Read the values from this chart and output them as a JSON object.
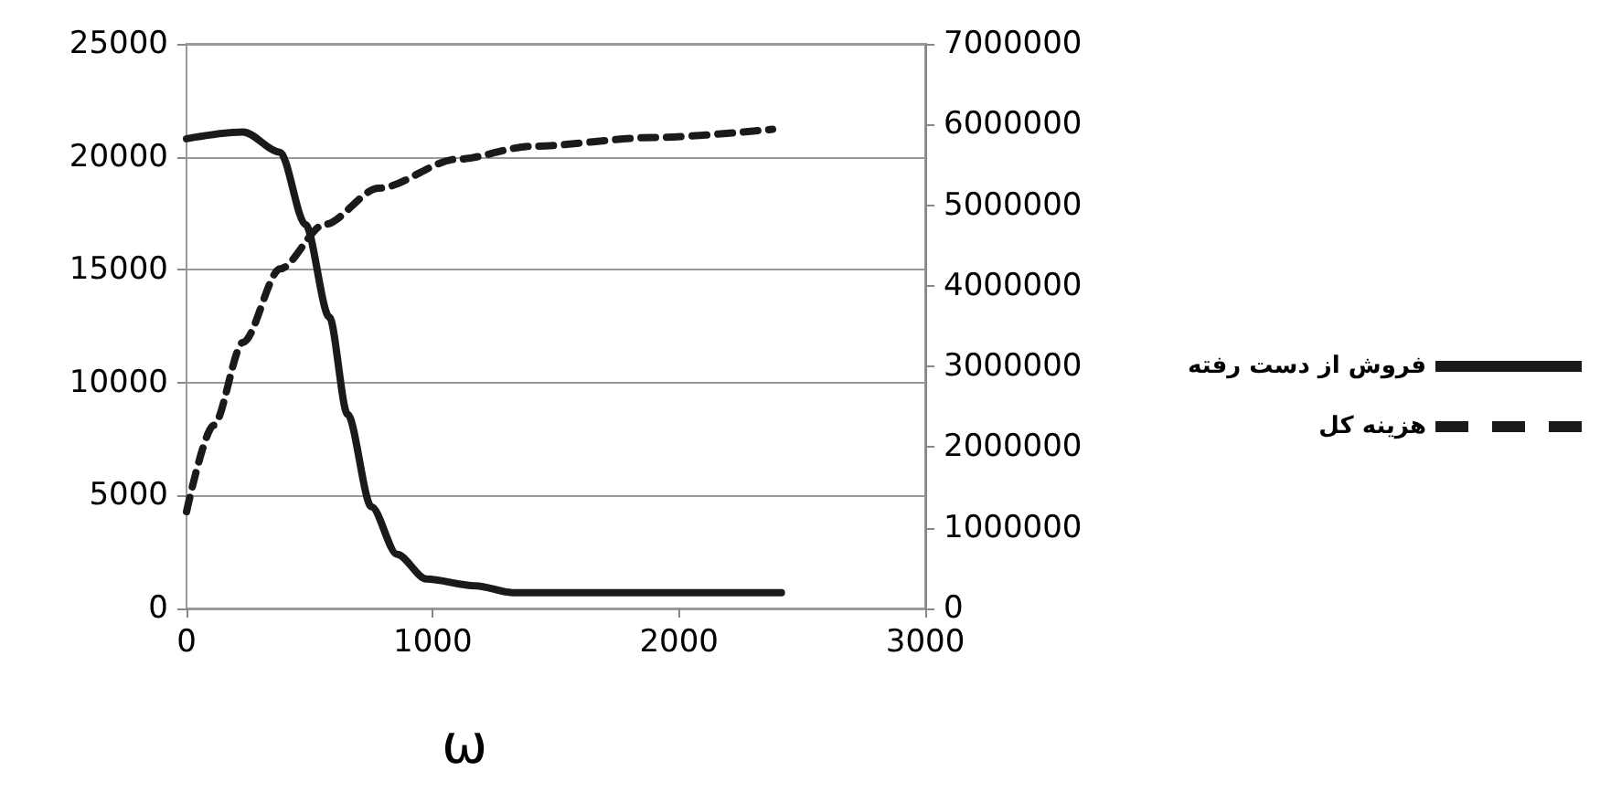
{
  "chart_data": {
    "type": "line",
    "xlabel": "ω",
    "xlim": [
      0,
      3000
    ],
    "xticks": [
      0,
      1000,
      2000,
      3000
    ],
    "ylim": [
      0,
      25000
    ],
    "yticks": [
      0,
      5000,
      10000,
      15000,
      20000,
      25000
    ],
    "y2lim": [
      0,
      7000000
    ],
    "y2ticks": [
      0,
      1000000,
      2000000,
      3000000,
      4000000,
      5000000,
      6000000,
      7000000
    ],
    "grid": "y",
    "legend": "right",
    "marker": "none",
    "series": [
      {
        "name": "فروش از دست رفته",
        "color": "#1a1a1a",
        "line_style": "solid",
        "x": [
          0,
          230,
          380,
          483,
          580,
          654,
          751,
          855,
          974,
          1175,
          1323,
          2416
        ],
        "values": [
          20800,
          21100,
          20200,
          17000,
          12900,
          8600,
          4500,
          2400,
          1300,
          1000,
          700,
          700
        ]
      },
      {
        "name": "هزینه کل",
        "color": "#1a1a1a",
        "line_style": "dashed",
        "axis": "y2",
        "x": [
          0,
          110,
          230,
          380,
          560,
          780,
          1100,
          1400,
          1900,
          2380
        ],
        "values": [
          1200000,
          2270000,
          3300000,
          4210000,
          4760000,
          5210000,
          5570000,
          5730000,
          5840000,
          5940000
        ]
      }
    ]
  }
}
